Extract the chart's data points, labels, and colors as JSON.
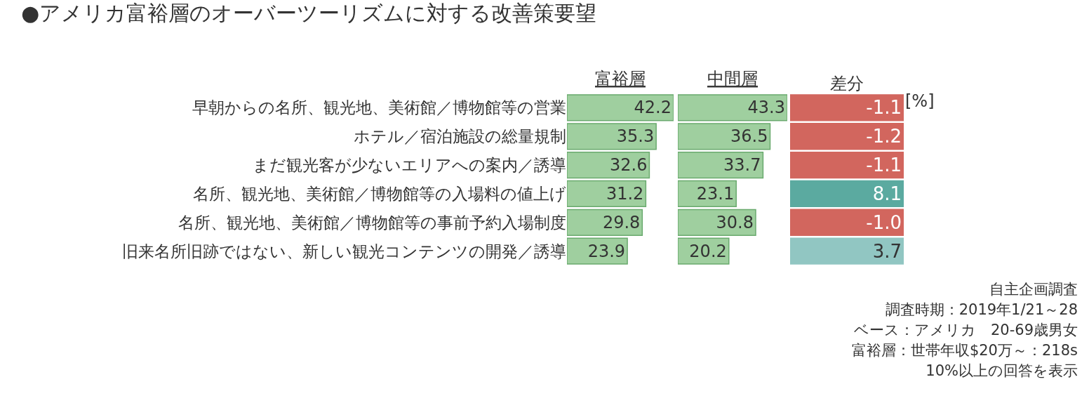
{
  "chart_data": [
    {
      "type": "bar",
      "orientation": "horizontal",
      "title": "●アメリカ富裕層のオーバーツーリズムに対する改善策要望",
      "xlabel": "富裕層",
      "categories": [
        "早朝からの名所、観光地、美術館／博物館等の営業",
        "ホテル／宿泊施設の総量規制",
        "まだ観光客が少ないエリアへの案内／誘導",
        "名所、観光地、美術館／博物館等の入場料の値上げ",
        "名所、観光地、美術館／博物館等の事前予約入場制度",
        "旧来名所旧跡ではない、新しい観光コンテンツの開発／誘導"
      ],
      "values": [
        42.2,
        35.3,
        32.6,
        31.2,
        29.8,
        23.9
      ],
      "color": "#9fcf9f",
      "xlim": [
        0,
        42.2
      ],
      "data_labels": true,
      "tick_labels": "y"
    },
    {
      "type": "bar",
      "orientation": "horizontal",
      "xlabel": "中間層",
      "categories": [
        null,
        null,
        null,
        null,
        null,
        null
      ],
      "values": [
        43.3,
        36.5,
        33.7,
        23.1,
        30.8,
        20.2
      ],
      "color": "#9fcf9f",
      "xlim": [
        0,
        43.3
      ],
      "data_labels": true,
      "tick_labels": false
    },
    {
      "type": "heatmap",
      "categories": [
        "差分"
      ],
      "y_categories": [
        null,
        null,
        null,
        null,
        null,
        null
      ],
      "cells": [
        [
          -1.1
        ],
        [
          -1.2
        ],
        [
          -1.1
        ],
        [
          8.1
        ],
        [
          -1.0
        ],
        [
          3.7
        ]
      ],
      "cell_labels": [
        [
          "-1.1"
        ],
        [
          "-1.2"
        ],
        [
          "-1.1"
        ],
        [
          "8.1"
        ],
        [
          "-1.0"
        ],
        [
          "3.7"
        ]
      ],
      "tick_labels": "x",
      "annotations": [
        "[%]",
        "自主企画調査",
        "調査時期：2019年1/21～28",
        "ベース：アメリカ　20-69歳男女",
        "富裕層：世帯年収$20万～：218s",
        "10%以上の回答を表示"
      ]
    }
  ]
}
